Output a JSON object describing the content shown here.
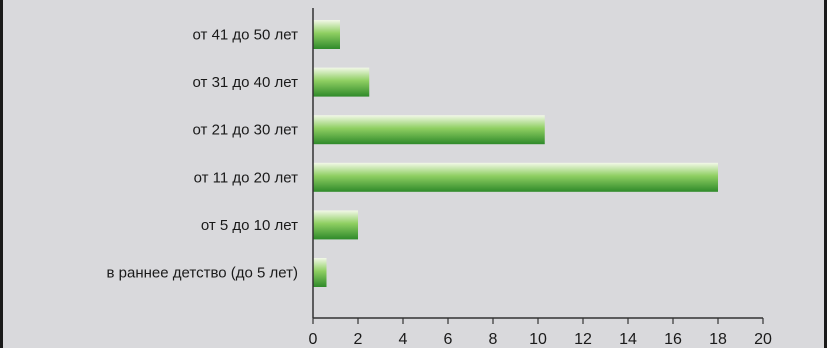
{
  "chart_data": {
    "type": "bar",
    "orientation": "horizontal",
    "categories": [
      "от 41 до 50 лет",
      "от 31 до 40 лет",
      "от 21 до 30 лет",
      "от 11 до 20 лет",
      "от 5 до 10 лет",
      "в раннее детство (до 5 лет)"
    ],
    "values": [
      1.2,
      2.5,
      10.3,
      18.0,
      2.0,
      0.6
    ],
    "xlim": [
      0,
      20
    ],
    "xticks": [
      "0",
      "2",
      "4",
      "6",
      "8",
      "10",
      "12",
      "14",
      "16",
      "18",
      "20"
    ],
    "grid": false,
    "title": "",
    "xlabel": "",
    "ylabel": "",
    "colors": {
      "bar_light": "#f2f8e8",
      "bar_mid": "#8fcf62",
      "bar_dark": "#2f8a2a",
      "axis": "#333333"
    }
  }
}
